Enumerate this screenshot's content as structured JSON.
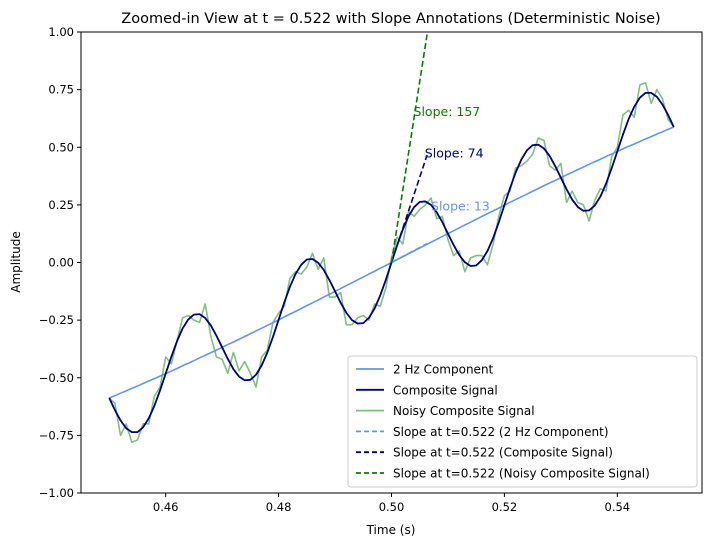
{
  "chart_data": {
    "type": "line",
    "title": "Zoomed-in View at t = 0.522 with Slope Annotations (Deterministic Noise)",
    "xlabel": "Time (s)",
    "ylabel": "Amplitude",
    "xlim": [
      0.445,
      0.555
    ],
    "ylim": [
      -1.0,
      1.0
    ],
    "x_ticks": [
      0.46,
      0.48,
      0.5,
      0.52,
      0.54
    ],
    "x_tick_labels": [
      "0.46",
      "0.48",
      "0.50",
      "0.52",
      "0.54"
    ],
    "y_ticks": [
      1.0,
      0.75,
      0.5,
      0.25,
      0.0,
      -0.25,
      -0.5,
      -0.75,
      -1.0
    ],
    "y_tick_labels": [
      "1.00",
      "0.75",
      "0.50",
      "0.25",
      "0.00",
      "−0.25",
      "−0.50",
      "−0.75",
      "−1.00"
    ],
    "grid": false,
    "legend_position": "lower-right",
    "x_start": 0.45,
    "x_step": 0.001,
    "series": [
      {
        "name": "2 Hz Component",
        "color": "#6495ED",
        "style": "solid",
        "values": [
          -0.588,
          -0.578,
          -0.567,
          -0.557,
          -0.546,
          -0.536,
          -0.525,
          -0.514,
          -0.504,
          -0.493,
          -0.482,
          -0.471,
          -0.46,
          -0.448,
          -0.437,
          -0.426,
          -0.414,
          -0.403,
          -0.391,
          -0.38,
          -0.368,
          -0.356,
          -0.345,
          -0.333,
          -0.321,
          -0.309,
          -0.297,
          -0.285,
          -0.273,
          -0.261,
          -0.249,
          -0.236,
          -0.224,
          -0.212,
          -0.2,
          -0.187,
          -0.175,
          -0.163,
          -0.15,
          -0.138,
          -0.125,
          -0.113,
          -0.1,
          -0.088,
          -0.075,
          -0.063,
          -0.05,
          -0.038,
          -0.025,
          -0.013,
          0,
          0.013,
          0.025,
          0.038,
          0.05,
          0.063,
          0.075,
          0.088,
          0.1,
          0.113,
          0.125,
          0.138,
          0.15,
          0.163,
          0.175,
          0.187,
          0.2,
          0.212,
          0.224,
          0.236,
          0.249,
          0.261,
          0.273,
          0.285,
          0.297,
          0.309,
          0.321,
          0.333,
          0.345,
          0.356,
          0.368,
          0.38,
          0.391,
          0.403,
          0.414,
          0.426,
          0.437,
          0.448,
          0.46,
          0.471,
          0.482,
          0.493,
          0.504,
          0.514,
          0.525,
          0.536,
          0.546,
          0.557,
          0.567,
          0.578,
          0.588
        ]
      },
      {
        "name": "Composite Signal",
        "color": "#000080",
        "style": "solid",
        "values": [
          -0.588,
          -0.64,
          -0.685,
          -0.719,
          -0.736,
          -0.736,
          -0.715,
          -0.676,
          -0.622,
          -0.555,
          -0.482,
          -0.409,
          -0.342,
          -0.286,
          -0.247,
          -0.226,
          -0.224,
          -0.241,
          -0.273,
          -0.318,
          -0.368,
          -0.418,
          -0.463,
          -0.495,
          -0.511,
          -0.509,
          -0.487,
          -0.447,
          -0.391,
          -0.323,
          -0.249,
          -0.174,
          -0.106,
          -0.05,
          -0.01,
          0.013,
          0.015,
          -0.001,
          -0.032,
          -0.076,
          -0.125,
          -0.175,
          -0.218,
          -0.25,
          -0.265,
          -0.263,
          -0.24,
          -0.2,
          -0.143,
          -0.075,
          0,
          0.075,
          0.143,
          0.2,
          0.24,
          0.263,
          0.265,
          0.25,
          0.218,
          0.175,
          0.125,
          0.076,
          0.032,
          0.001,
          -0.015,
          -0.013,
          0.01,
          0.05,
          0.106,
          0.174,
          0.249,
          0.323,
          0.391,
          0.447,
          0.487,
          0.509,
          0.511,
          0.495,
          0.463,
          0.418,
          0.368,
          0.318,
          0.273,
          0.241,
          0.224,
          0.226,
          0.247,
          0.286,
          0.342,
          0.409,
          0.482,
          0.555,
          0.622,
          0.676,
          0.715,
          0.736,
          0.736,
          0.719,
          0.685,
          0.64,
          0.588
        ]
      },
      {
        "name": "Noisy Composite Signal",
        "color": "#008000",
        "style": "solid",
        "opacity": 0.5,
        "values": [
          -0.59,
          -0.61,
          -0.75,
          -0.7,
          -0.78,
          -0.77,
          -0.7,
          -0.7,
          -0.58,
          -0.54,
          -0.41,
          -0.44,
          -0.34,
          -0.24,
          -0.23,
          -0.25,
          -0.26,
          -0.18,
          -0.32,
          -0.41,
          -0.42,
          -0.48,
          -0.39,
          -0.47,
          -0.43,
          -0.48,
          -0.54,
          -0.41,
          -0.38,
          -0.26,
          -0.22,
          -0.19,
          -0.07,
          -0.04,
          -0.05,
          -0.02,
          0.04,
          -0.03,
          0.02,
          -0.15,
          -0.15,
          -0.13,
          -0.27,
          -0.27,
          -0.24,
          -0.23,
          -0.25,
          -0.18,
          -0.19,
          -0.11,
          0.02,
          0.11,
          0.08,
          0.22,
          0.2,
          0.23,
          0.25,
          0.28,
          0.19,
          0.2,
          0.1,
          0.03,
          0.05,
          -0.04,
          0.02,
          0.03,
          0.03,
          -0.01,
          0.08,
          0.2,
          0.29,
          0.31,
          0.41,
          0.42,
          0.44,
          0.47,
          0.54,
          0.53,
          0.42,
          0.4,
          0.43,
          0.26,
          0.31,
          0.26,
          0.25,
          0.18,
          0.27,
          0.32,
          0.31,
          0.46,
          0.5,
          0.64,
          0.66,
          0.63,
          0.77,
          0.78,
          0.69,
          0.75,
          0.71,
          0.62,
          0.59
        ]
      }
    ],
    "tangents": [
      {
        "name": "Slope at t=0.522 (2 Hz Component)",
        "color": "#6495ED",
        "slope": 13,
        "label": "Slope: 13"
      },
      {
        "name": "Slope at t=0.522 (Composite Signal)",
        "color": "#000080",
        "slope": 74,
        "label": "Slope: 74"
      },
      {
        "name": "Slope at t=0.522 (Noisy Composite Signal)",
        "color": "#008000",
        "slope": 157,
        "label": "Slope: 157"
      }
    ]
  }
}
